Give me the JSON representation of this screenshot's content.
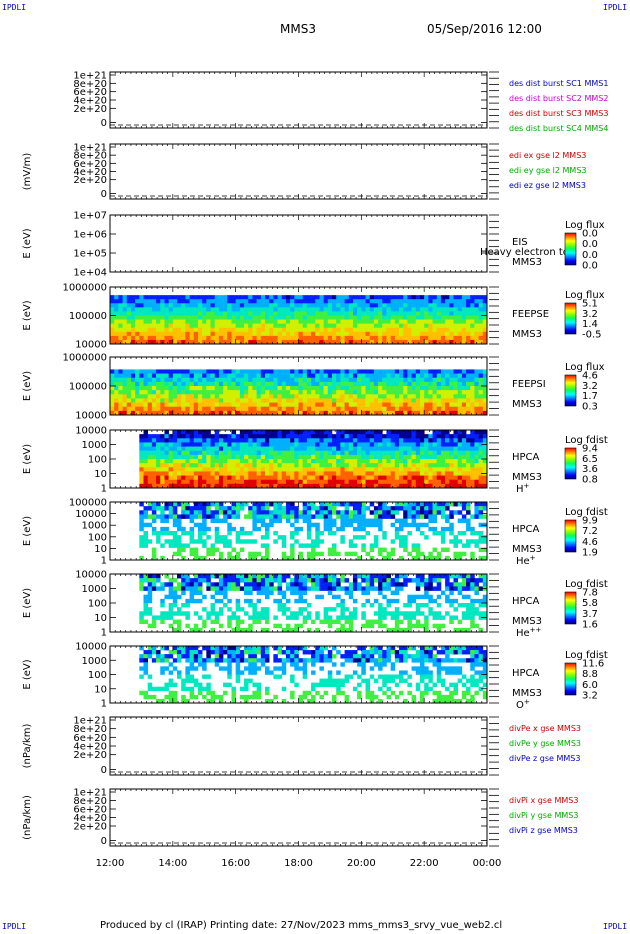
{
  "corners": {
    "tl": "IPDLI",
    "tr": "IPDLI",
    "bl": "IPDLI",
    "br": "IPDLI"
  },
  "header": {
    "mission": "MMS3",
    "datetime": "05/Sep/2016 12:00"
  },
  "footer": {
    "text": "Produced by cl (IRAP)   Printing date: 27/Nov/2023   mms_mms3_srvy_vue_web2.cl"
  },
  "time_axis": [
    "12:00",
    "14:00",
    "16:00",
    "18:00",
    "20:00",
    "22:00",
    "00:00"
  ],
  "chart_data": [
    {
      "type": "line",
      "ylabel": "",
      "yscale": "linear",
      "yticks": [
        "1e+21",
        "8e+20",
        "6e+20",
        "4e+20",
        "2e+20",
        "0"
      ],
      "legend": [
        {
          "text": "des dist burst SC1 MMS1",
          "color": "#0000cc"
        },
        {
          "text": "des dist burst SC2 MMS2",
          "color": "#cc00cc"
        },
        {
          "text": "des dist burst SC3 MMS3",
          "color": "#cc0000"
        },
        {
          "text": "des dist burst SC4 MMS4",
          "color": "#00aa00"
        }
      ],
      "zero_line": true
    },
    {
      "type": "line",
      "ylabel": "(mV/m)",
      "yscale": "linear",
      "yticks": [
        "1e+21",
        "8e+20",
        "6e+20",
        "4e+20",
        "2e+20",
        "0"
      ],
      "legend": [
        {
          "text": "edi ex gse l2 MMS3",
          "color": "#cc0000"
        },
        {
          "text": "edi ey gse l2 MMS3",
          "color": "#00aa00"
        },
        {
          "text": "edi ez gse l2 MMS3",
          "color": "#0000cc"
        }
      ],
      "zero_line": true
    },
    {
      "type": "heatmap",
      "ylabel": "E (eV)",
      "yscale": "log",
      "yticks": [
        "1e+07",
        "1e+06",
        "1e+05",
        "1e+04"
      ],
      "labels": [
        "EIS",
        "MMS3"
      ],
      "overlay": "Heavy electron tof",
      "colorbar": {
        "title": "Log flux",
        "ticks": [
          "0.0",
          "0.0",
          "0.0",
          "0.0"
        ]
      },
      "data_coverage": "none"
    },
    {
      "type": "heatmap",
      "ylabel": "E (eV)",
      "yscale": "log",
      "yticks": [
        "1000000",
        "100000",
        "10000"
      ],
      "labels": [
        "FEEPSE",
        "MMS3"
      ],
      "colorbar": {
        "title": "Log flux",
        "ticks": [
          "5.1",
          "3.2",
          "1.4",
          "-0.5"
        ]
      },
      "data_coverage": "full"
    },
    {
      "type": "heatmap",
      "ylabel": "E (eV)",
      "yscale": "log",
      "yticks": [
        "1000000",
        "100000",
        "10000"
      ],
      "labels": [
        "FEEPSI",
        "MMS3"
      ],
      "colorbar": {
        "title": "Log flux",
        "ticks": [
          "4.6",
          "3.2",
          "1.7",
          "0.3"
        ]
      },
      "data_coverage": "full"
    },
    {
      "type": "heatmap",
      "ylabel": "E (eV)",
      "yscale": "log",
      "yticks": [
        "10000",
        "1000",
        "100",
        "10",
        "1"
      ],
      "labels": [
        "HPCA",
        "MMS3"
      ],
      "species_base": "H",
      "species_sup": "+",
      "colorbar": {
        "title": "Log fdist",
        "ticks": [
          "9.4",
          "6.5",
          "3.6",
          "0.8"
        ]
      },
      "data_coverage": "from 13:00"
    },
    {
      "type": "heatmap",
      "ylabel": "E (eV)",
      "yscale": "log",
      "yticks": [
        "100000",
        "10000",
        "1000",
        "100",
        "10",
        "1"
      ],
      "labels": [
        "HPCA",
        "MMS3"
      ],
      "species_base": "He",
      "species_sup": "+",
      "colorbar": {
        "title": "Log fdist",
        "ticks": [
          "9.9",
          "7.2",
          "4.6",
          "1.9"
        ]
      },
      "data_coverage": "from 13:00"
    },
    {
      "type": "heatmap",
      "ylabel": "E (eV)",
      "yscale": "log",
      "yticks": [
        "10000",
        "1000",
        "100",
        "10",
        "1"
      ],
      "labels": [
        "HPCA",
        "MMS3"
      ],
      "species_base": "He",
      "species_sup": "++",
      "colorbar": {
        "title": "Log fdist",
        "ticks": [
          "7.8",
          "5.8",
          "3.7",
          "1.6"
        ]
      },
      "data_coverage": "from 13:00"
    },
    {
      "type": "heatmap",
      "ylabel": "E (eV)",
      "yscale": "log",
      "yticks": [
        "10000",
        "1000",
        "100",
        "10",
        "1"
      ],
      "labels": [
        "HPCA",
        "MMS3"
      ],
      "species_base": "O",
      "species_sup": "+",
      "colorbar": {
        "title": "Log fdist",
        "ticks": [
          "11.6",
          "8.8",
          "6.0",
          "3.2"
        ]
      },
      "data_coverage": "from 13:00"
    },
    {
      "type": "line",
      "ylabel": "(nPa/km)",
      "yscale": "linear",
      "yticks": [
        "1e+21",
        "8e+20",
        "6e+20",
        "4e+20",
        "2e+20",
        "0"
      ],
      "legend": [
        {
          "text": "divPe x gse MMS3",
          "color": "#cc0000"
        },
        {
          "text": "divPe y gse MMS3",
          "color": "#00aa00"
        },
        {
          "text": "divPe z gse MMS3",
          "color": "#0000cc"
        }
      ],
      "zero_line": true
    },
    {
      "type": "line",
      "ylabel": "(nPa/km)",
      "yscale": "linear",
      "yticks": [
        "1e+21",
        "8e+20",
        "6e+20",
        "4e+20",
        "2e+20",
        "0"
      ],
      "legend": [
        {
          "text": "divPi x gse MMS3",
          "color": "#cc0000"
        },
        {
          "text": "divPi y gse MMS3",
          "color": "#00aa00"
        },
        {
          "text": "divPi z gse MMS3",
          "color": "#0000cc"
        }
      ],
      "zero_line": true
    }
  ]
}
